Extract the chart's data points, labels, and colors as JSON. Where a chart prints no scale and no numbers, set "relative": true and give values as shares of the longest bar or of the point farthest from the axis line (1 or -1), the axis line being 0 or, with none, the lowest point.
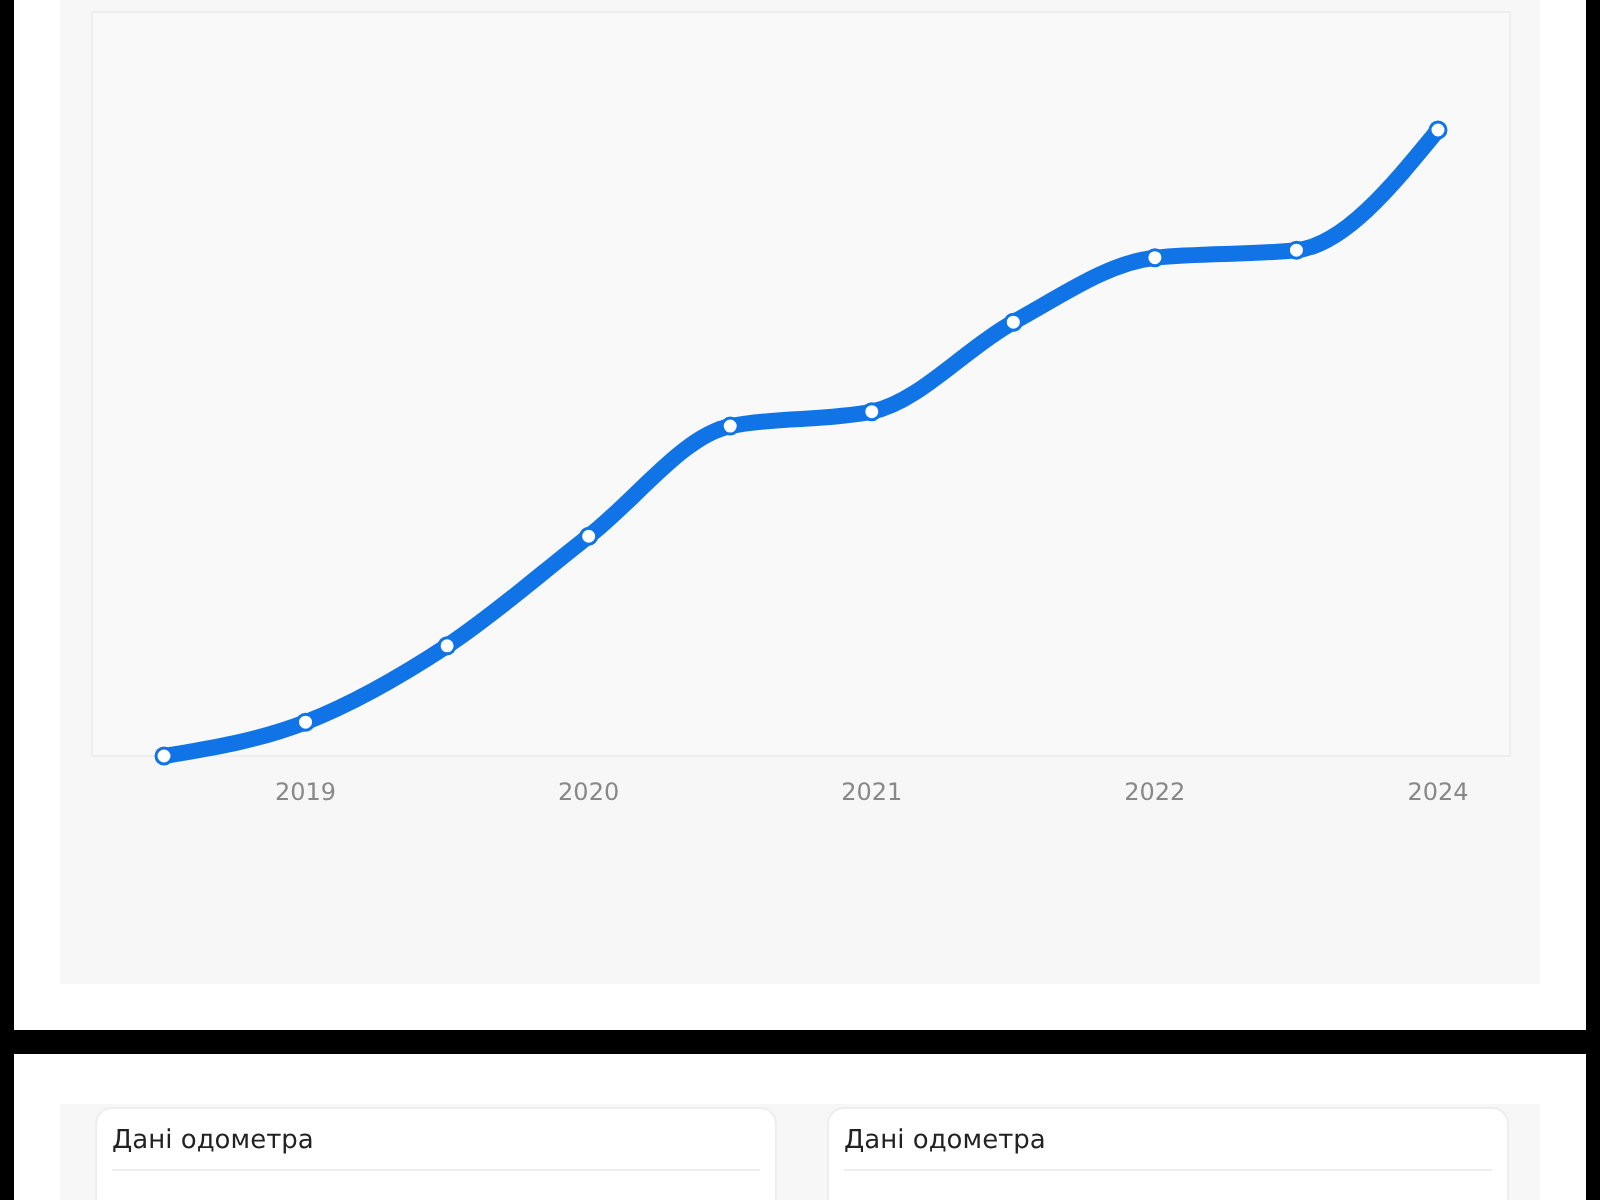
{
  "chart_data": {
    "type": "line",
    "relative": true,
    "categories": [
      null,
      "2019",
      null,
      "2020",
      null,
      "2021",
      null,
      "2022",
      null,
      "2024"
    ],
    "series": [
      {
        "color": "#1174e6",
        "values": [
          0,
          0.054,
          0.176,
          0.351,
          0.527,
          0.55,
          0.693,
          0.796,
          0.808,
          1
        ]
      }
    ],
    "marker": "circle",
    "line_style": "solid",
    "annotations": [
      "Дані одометра",
      "Дані одометра"
    ]
  }
}
